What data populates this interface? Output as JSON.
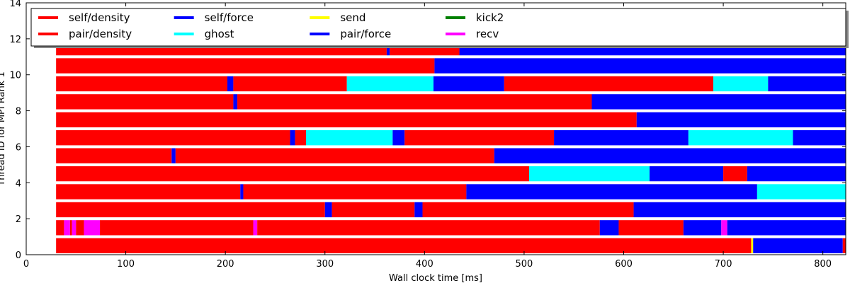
{
  "chart_data": {
    "type": "task-timeline",
    "title": "",
    "xlabel": "Wall clock time [ms]",
    "ylabel": "Thread ID for MPI Rank 1",
    "xlim": [
      0,
      823
    ],
    "ylim": [
      0,
      14
    ],
    "xticks": [
      0,
      100,
      200,
      300,
      400,
      500,
      600,
      700,
      800
    ],
    "yticks": [
      0,
      2,
      4,
      6,
      8,
      10,
      12,
      14
    ],
    "grid": false,
    "legend_position": "top",
    "legend_columns": 6,
    "legend": [
      {
        "label": "self/density",
        "color": "#ff0000"
      },
      {
        "label": "pair/density",
        "color": "#ff0000"
      },
      {
        "label": "self/force",
        "color": "#0000ff"
      },
      {
        "label": "ghost",
        "color": "#00ffff"
      },
      {
        "label": "send",
        "color": "#ffff00"
      },
      {
        "label": "pair/force",
        "color": "#0000ff"
      },
      {
        "label": "kick2",
        "color": "#008000"
      },
      {
        "label": "recv",
        "color": "#ff00ff"
      }
    ],
    "threads": [
      {
        "thread": 0,
        "segments": [
          {
            "task": "pair/density",
            "start": 30,
            "end": 728
          },
          {
            "task": "send",
            "start": 728,
            "end": 730
          },
          {
            "task": "pair/force",
            "start": 730,
            "end": 820
          },
          {
            "task": "pair/density",
            "start": 820,
            "end": 823
          }
        ]
      },
      {
        "thread": 1,
        "segments": [
          {
            "task": "pair/density",
            "start": 30,
            "end": 38
          },
          {
            "task": "recv",
            "start": 38,
            "end": 44
          },
          {
            "task": "pair/density",
            "start": 44,
            "end": 46
          },
          {
            "task": "recv",
            "start": 46,
            "end": 50
          },
          {
            "task": "pair/density",
            "start": 50,
            "end": 58
          },
          {
            "task": "recv",
            "start": 58,
            "end": 74
          },
          {
            "task": "pair/density",
            "start": 74,
            "end": 228
          },
          {
            "task": "recv",
            "start": 228,
            "end": 232
          },
          {
            "task": "pair/density",
            "start": 232,
            "end": 576
          },
          {
            "task": "pair/force",
            "start": 576,
            "end": 595
          },
          {
            "task": "pair/density",
            "start": 595,
            "end": 660
          },
          {
            "task": "pair/force",
            "start": 660,
            "end": 698
          },
          {
            "task": "recv",
            "start": 698,
            "end": 704
          },
          {
            "task": "pair/force",
            "start": 704,
            "end": 823
          }
        ]
      },
      {
        "thread": 2,
        "segments": [
          {
            "task": "pair/density",
            "start": 30,
            "end": 300
          },
          {
            "task": "pair/force",
            "start": 300,
            "end": 307
          },
          {
            "task": "pair/density",
            "start": 307,
            "end": 390
          },
          {
            "task": "pair/force",
            "start": 390,
            "end": 398
          },
          {
            "task": "pair/density",
            "start": 398,
            "end": 610
          },
          {
            "task": "pair/force",
            "start": 610,
            "end": 823
          }
        ]
      },
      {
        "thread": 3,
        "segments": [
          {
            "task": "pair/density",
            "start": 30,
            "end": 215
          },
          {
            "task": "pair/force",
            "start": 215,
            "end": 218
          },
          {
            "task": "pair/density",
            "start": 218,
            "end": 442
          },
          {
            "task": "pair/force",
            "start": 442,
            "end": 734
          },
          {
            "task": "ghost",
            "start": 734,
            "end": 823
          }
        ]
      },
      {
        "thread": 4,
        "segments": [
          {
            "task": "pair/density",
            "start": 30,
            "end": 505
          },
          {
            "task": "ghost",
            "start": 505,
            "end": 626
          },
          {
            "task": "pair/force",
            "start": 626,
            "end": 700
          },
          {
            "task": "pair/density",
            "start": 700,
            "end": 724
          },
          {
            "task": "pair/force",
            "start": 724,
            "end": 823
          }
        ]
      },
      {
        "thread": 5,
        "segments": [
          {
            "task": "pair/density",
            "start": 30,
            "end": 146
          },
          {
            "task": "pair/force",
            "start": 146,
            "end": 150
          },
          {
            "task": "pair/density",
            "start": 150,
            "end": 470
          },
          {
            "task": "pair/force",
            "start": 470,
            "end": 823
          }
        ]
      },
      {
        "thread": 6,
        "segments": [
          {
            "task": "pair/density",
            "start": 30,
            "end": 265
          },
          {
            "task": "pair/force",
            "start": 265,
            "end": 270
          },
          {
            "task": "pair/density",
            "start": 270,
            "end": 281
          },
          {
            "task": "ghost",
            "start": 281,
            "end": 368
          },
          {
            "task": "pair/force",
            "start": 368,
            "end": 380
          },
          {
            "task": "pair/density",
            "start": 380,
            "end": 530
          },
          {
            "task": "pair/force",
            "start": 530,
            "end": 665
          },
          {
            "task": "ghost",
            "start": 665,
            "end": 770
          },
          {
            "task": "pair/force",
            "start": 770,
            "end": 823
          }
        ]
      },
      {
        "thread": 7,
        "segments": [
          {
            "task": "pair/density",
            "start": 30,
            "end": 613
          },
          {
            "task": "pair/force",
            "start": 613,
            "end": 823
          }
        ]
      },
      {
        "thread": 8,
        "segments": [
          {
            "task": "pair/density",
            "start": 30,
            "end": 208
          },
          {
            "task": "pair/force",
            "start": 208,
            "end": 212
          },
          {
            "task": "pair/density",
            "start": 212,
            "end": 568
          },
          {
            "task": "pair/force",
            "start": 568,
            "end": 823
          }
        ]
      },
      {
        "thread": 9,
        "segments": [
          {
            "task": "pair/density",
            "start": 30,
            "end": 202
          },
          {
            "task": "pair/force",
            "start": 202,
            "end": 208
          },
          {
            "task": "pair/density",
            "start": 208,
            "end": 322
          },
          {
            "task": "ghost",
            "start": 322,
            "end": 409
          },
          {
            "task": "pair/force",
            "start": 409,
            "end": 480
          },
          {
            "task": "pair/density",
            "start": 480,
            "end": 690
          },
          {
            "task": "ghost",
            "start": 690,
            "end": 745
          },
          {
            "task": "pair/force",
            "start": 745,
            "end": 823
          }
        ]
      },
      {
        "thread": 10,
        "segments": [
          {
            "task": "pair/density",
            "start": 30,
            "end": 410
          },
          {
            "task": "pair/force",
            "start": 410,
            "end": 823
          }
        ]
      },
      {
        "thread": 11,
        "segments": [
          {
            "task": "pair/density",
            "start": 30,
            "end": 362
          },
          {
            "task": "pair/force",
            "start": 362,
            "end": 365
          },
          {
            "task": "pair/density",
            "start": 365,
            "end": 435
          },
          {
            "task": "pair/force",
            "start": 435,
            "end": 823
          }
        ]
      }
    ]
  }
}
